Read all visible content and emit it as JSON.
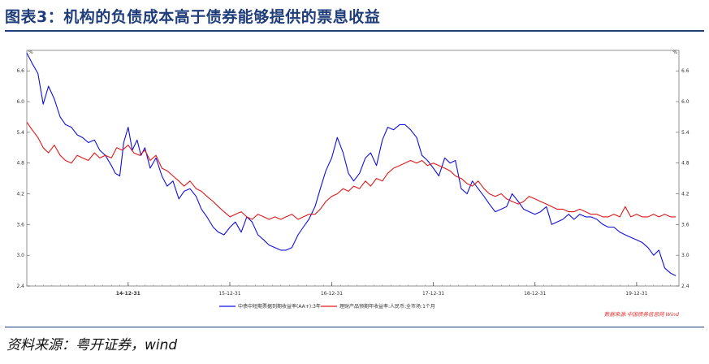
{
  "title": "图表3：机构的负债成本高于债券能够提供的票息收益",
  "source": "资料来源：粤开证券，wind",
  "chart_data": {
    "type": "line",
    "y_unit": "%",
    "ylim": [
      2.4,
      7.0
    ],
    "y_ticks": [
      "2.4",
      "3.0",
      "3.6",
      "4.2",
      "4.8",
      "5.4",
      "6.0",
      "6.6"
    ],
    "x_ticks": [
      "14-12-31",
      "15-12-31",
      "16-12-31",
      "17-12-31",
      "18-12-31",
      "19-12-31"
    ],
    "x_range": [
      "2014-01-01",
      "2020-05-31"
    ],
    "grid": false,
    "legend_position": "bottom",
    "credit": "数据来源:中国债券信息网 Wind",
    "series": [
      {
        "name": "中债中短期票据到期收益率(AA+):3年",
        "color": "#1010e0",
        "x": [
          "2014-01-01",
          "2014-01-20",
          "2014-02-10",
          "2014-03-01",
          "2014-03-20",
          "2014-04-10",
          "2014-05-01",
          "2014-05-20",
          "2014-06-10",
          "2014-07-01",
          "2014-07-20",
          "2014-08-10",
          "2014-09-01",
          "2014-09-20",
          "2014-10-10",
          "2014-11-01",
          "2014-11-15",
          "2014-12-01",
          "2014-12-15",
          "2014-12-31",
          "2015-01-15",
          "2015-02-01",
          "2015-02-15",
          "2015-03-01",
          "2015-03-20",
          "2015-04-10",
          "2015-05-01",
          "2015-05-20",
          "2015-06-10",
          "2015-07-01",
          "2015-07-20",
          "2015-08-10",
          "2015-09-01",
          "2015-09-20",
          "2015-10-10",
          "2015-11-01",
          "2015-11-20",
          "2015-12-10",
          "2016-01-01",
          "2016-01-20",
          "2016-02-10",
          "2016-03-01",
          "2016-03-20",
          "2016-04-10",
          "2016-05-01",
          "2016-05-20",
          "2016-06-10",
          "2016-07-01",
          "2016-07-20",
          "2016-08-10",
          "2016-09-01",
          "2016-09-20",
          "2016-10-10",
          "2016-11-01",
          "2016-11-20",
          "2016-12-10",
          "2016-12-31",
          "2017-01-20",
          "2017-02-10",
          "2017-03-01",
          "2017-03-20",
          "2017-04-10",
          "2017-05-01",
          "2017-05-20",
          "2017-06-10",
          "2017-07-01",
          "2017-07-20",
          "2017-08-10",
          "2017-09-01",
          "2017-09-20",
          "2017-10-10",
          "2017-11-01",
          "2017-11-20",
          "2017-12-10",
          "2017-12-31",
          "2018-01-20",
          "2018-02-10",
          "2018-03-01",
          "2018-03-20",
          "2018-04-10",
          "2018-05-01",
          "2018-05-20",
          "2018-06-10",
          "2018-07-01",
          "2018-07-20",
          "2018-08-10",
          "2018-09-01",
          "2018-09-20",
          "2018-10-10",
          "2018-11-01",
          "2018-11-20",
          "2018-12-10",
          "2018-12-31",
          "2019-01-20",
          "2019-02-10",
          "2019-03-01",
          "2019-03-20",
          "2019-04-10",
          "2019-05-01",
          "2019-05-20",
          "2019-06-10",
          "2019-07-01",
          "2019-07-20",
          "2019-08-10",
          "2019-09-01",
          "2019-09-20",
          "2019-10-10",
          "2019-11-01",
          "2019-11-20",
          "2019-12-10",
          "2019-12-31",
          "2020-01-20",
          "2020-02-10",
          "2020-03-01",
          "2020-03-20",
          "2020-04-10",
          "2020-05-01",
          "2020-05-20"
        ],
        "values": [
          6.95,
          6.75,
          6.55,
          5.95,
          6.3,
          6.05,
          5.7,
          5.55,
          5.5,
          5.35,
          5.3,
          5.2,
          5.25,
          5.05,
          4.95,
          4.75,
          4.6,
          4.55,
          5.2,
          5.5,
          5.05,
          5.25,
          4.95,
          5.1,
          4.7,
          4.9,
          4.55,
          4.35,
          4.45,
          4.1,
          4.25,
          4.3,
          4.15,
          3.9,
          3.75,
          3.55,
          3.45,
          3.4,
          3.55,
          3.65,
          3.45,
          3.75,
          3.65,
          3.4,
          3.3,
          3.2,
          3.15,
          3.1,
          3.1,
          3.15,
          3.4,
          3.55,
          3.7,
          3.95,
          4.3,
          4.65,
          4.9,
          5.3,
          5.0,
          4.6,
          4.45,
          4.6,
          4.9,
          5.0,
          4.75,
          5.25,
          5.5,
          5.45,
          5.55,
          5.55,
          5.45,
          5.3,
          4.95,
          4.85,
          4.7,
          4.55,
          4.9,
          4.8,
          4.85,
          4.3,
          4.2,
          4.45,
          4.3,
          4.15,
          4.0,
          3.85,
          3.9,
          3.95,
          4.2,
          4.05,
          3.9,
          3.85,
          3.8,
          3.85,
          3.95,
          3.6,
          3.65,
          3.7,
          3.8,
          3.7,
          3.8,
          3.75,
          3.75,
          3.7,
          3.6,
          3.55,
          3.55,
          3.45,
          3.4,
          3.35,
          3.3,
          3.25,
          3.15,
          3.0,
          3.1,
          2.75,
          2.65,
          2.6
        ]
      },
      {
        "name": "理财产品预期年收益率:人民币:全市场:1个月",
        "color": "#e01818",
        "x": [
          "2014-01-01",
          "2014-01-20",
          "2014-02-10",
          "2014-03-01",
          "2014-03-20",
          "2014-04-10",
          "2014-05-01",
          "2014-05-20",
          "2014-06-10",
          "2014-07-01",
          "2014-07-20",
          "2014-08-10",
          "2014-09-01",
          "2014-09-20",
          "2014-10-10",
          "2014-11-01",
          "2014-11-20",
          "2014-12-10",
          "2014-12-31",
          "2015-01-20",
          "2015-02-10",
          "2015-03-01",
          "2015-03-20",
          "2015-04-10",
          "2015-05-01",
          "2015-05-20",
          "2015-06-10",
          "2015-07-01",
          "2015-07-20",
          "2015-08-10",
          "2015-09-01",
          "2015-09-20",
          "2015-10-10",
          "2015-11-01",
          "2015-11-20",
          "2015-12-10",
          "2016-01-01",
          "2016-01-20",
          "2016-02-10",
          "2016-03-01",
          "2016-03-20",
          "2016-04-10",
          "2016-05-01",
          "2016-05-20",
          "2016-06-10",
          "2016-07-01",
          "2016-07-20",
          "2016-08-10",
          "2016-09-01",
          "2016-09-20",
          "2016-10-10",
          "2016-11-01",
          "2016-11-20",
          "2016-12-10",
          "2016-12-31",
          "2017-01-20",
          "2017-02-10",
          "2017-03-01",
          "2017-03-20",
          "2017-04-10",
          "2017-05-01",
          "2017-05-20",
          "2017-06-10",
          "2017-07-01",
          "2017-07-20",
          "2017-08-10",
          "2017-09-01",
          "2017-09-20",
          "2017-10-10",
          "2017-11-01",
          "2017-11-20",
          "2017-12-10",
          "2017-12-31",
          "2018-01-20",
          "2018-02-10",
          "2018-03-01",
          "2018-03-20",
          "2018-04-10",
          "2018-05-01",
          "2018-05-20",
          "2018-06-10",
          "2018-07-01",
          "2018-07-20",
          "2018-08-10",
          "2018-09-01",
          "2018-09-20",
          "2018-10-10",
          "2018-11-01",
          "2018-11-20",
          "2018-12-10",
          "2018-12-31",
          "2019-01-20",
          "2019-02-10",
          "2019-03-01",
          "2019-03-20",
          "2019-04-10",
          "2019-05-01",
          "2019-05-20",
          "2019-06-10",
          "2019-07-01",
          "2019-07-20",
          "2019-08-10",
          "2019-09-01",
          "2019-09-20",
          "2019-10-10",
          "2019-11-01",
          "2019-11-20",
          "2019-12-10",
          "2019-12-31",
          "2020-01-20",
          "2020-02-10",
          "2020-03-01",
          "2020-03-20",
          "2020-04-10",
          "2020-05-01",
          "2020-05-20"
        ],
        "values": [
          5.6,
          5.45,
          5.3,
          5.1,
          5.0,
          5.15,
          4.95,
          4.85,
          4.8,
          4.95,
          4.9,
          4.85,
          5.0,
          4.9,
          4.95,
          4.9,
          5.1,
          5.05,
          5.15,
          5.0,
          4.95,
          5.05,
          4.85,
          4.95,
          4.7,
          4.65,
          4.55,
          4.45,
          4.35,
          4.45,
          4.3,
          4.25,
          4.15,
          4.05,
          3.95,
          3.85,
          3.75,
          3.8,
          3.85,
          3.75,
          3.7,
          3.8,
          3.75,
          3.7,
          3.75,
          3.7,
          3.75,
          3.8,
          3.7,
          3.75,
          3.8,
          3.8,
          3.9,
          4.05,
          4.15,
          4.2,
          4.3,
          4.25,
          4.35,
          4.3,
          4.45,
          4.35,
          4.5,
          4.45,
          4.6,
          4.7,
          4.75,
          4.8,
          4.85,
          4.8,
          4.85,
          4.75,
          4.8,
          4.75,
          4.7,
          4.65,
          4.55,
          4.5,
          4.4,
          4.35,
          4.45,
          4.3,
          4.2,
          4.15,
          4.2,
          4.1,
          4.05,
          4.0,
          4.05,
          4.15,
          4.1,
          4.05,
          4.0,
          3.95,
          3.9,
          3.9,
          3.85,
          3.85,
          3.9,
          3.85,
          3.8,
          3.8,
          3.75,
          3.75,
          3.8,
          3.75,
          3.95,
          3.75,
          3.8,
          3.75,
          3.75,
          3.8,
          3.75,
          3.8,
          3.75,
          3.75
        ]
      }
    ]
  }
}
